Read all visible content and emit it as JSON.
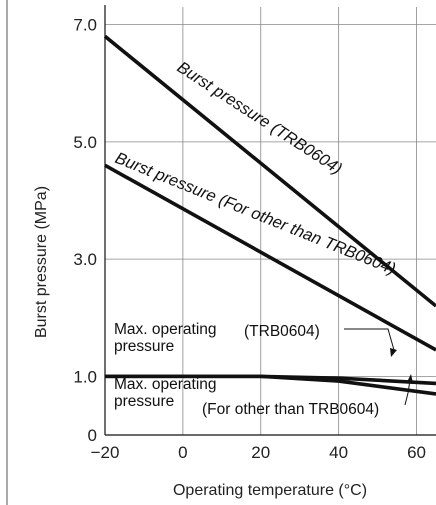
{
  "chart_data": {
    "type": "line",
    "xlabel": "Operating temperature (°C)",
    "ylabel": "Burst pressure (MPa)",
    "xlim": [
      -20,
      65
    ],
    "ylim": [
      0,
      7.3
    ],
    "x_ticks": [
      "−20",
      "0",
      "20",
      "40",
      "60"
    ],
    "x_tick_values": [
      -20,
      0,
      20,
      40,
      60
    ],
    "y_ticks": [
      "0",
      "1.0",
      "3.0",
      "5.0",
      "7.0"
    ],
    "y_tick_values": [
      0,
      1,
      3,
      5,
      7
    ],
    "grid": true,
    "series": [
      {
        "name": "Burst pressure (TRB0604)",
        "x": [
          -20,
          65
        ],
        "y": [
          6.8,
          2.2
        ]
      },
      {
        "name": "Burst pressure (For other than TRB0604)",
        "x": [
          -20,
          65
        ],
        "y": [
          4.6,
          1.45
        ]
      },
      {
        "name": "Max. operating pressure (TRB0604)",
        "x": [
          -20,
          20,
          40,
          65
        ],
        "y": [
          1.0,
          1.0,
          0.97,
          0.88
        ]
      },
      {
        "name": "Max. operating pressure (For other than TRB0604)",
        "x": [
          -20,
          20,
          40,
          65
        ],
        "y": [
          1.0,
          1.0,
          0.92,
          0.7
        ]
      }
    ],
    "annotations": {
      "burst_trb_label": "Burst pressure (TRB0604)",
      "burst_other_label": "Burst pressure (For other than TRB0604)",
      "max_op_top_line1": "Max. operating",
      "max_op_top_line2": "pressure",
      "max_op_top_tag": "(TRB0604)",
      "max_op_bottom_line1": "Max. operating",
      "max_op_bottom_line2": "pressure",
      "max_op_bottom_tag": "(For other than TRB0604)"
    }
  }
}
